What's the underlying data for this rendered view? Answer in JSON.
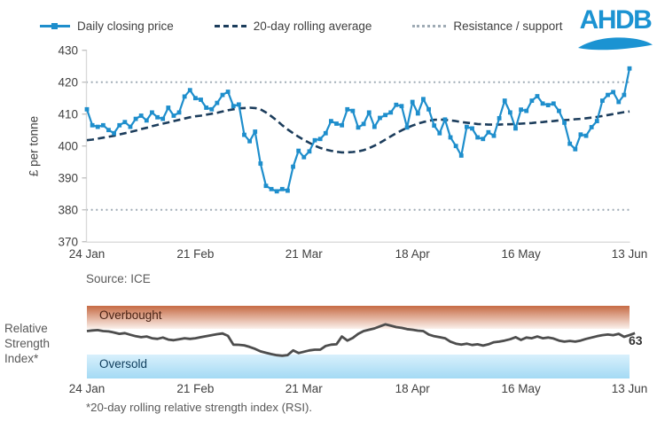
{
  "legend": {
    "items": [
      {
        "label": "Daily closing price",
        "type": "line-marker",
        "color": "#1E8ECC"
      },
      {
        "label": "20-day rolling average",
        "type": "dashed-line",
        "color": "#1C3D5C"
      },
      {
        "label": "Resistance / support",
        "type": "dotted-line",
        "color": "#9EAAB4"
      }
    ]
  },
  "logo": {
    "text": "AHDB",
    "color": "#1B93D2"
  },
  "source": {
    "text": "Source: ICE"
  },
  "colors": {
    "price": "#1E8ECC",
    "average": "#1C3D5C",
    "support": "#9EAAB4",
    "axis_line": "#D9D9D9",
    "axis_text": "#404040",
    "rsi_line": "#4D4D4D"
  },
  "chart_data": [
    {
      "type": "line",
      "ylabel": "£ per tonne",
      "ylim": [
        370,
        430
      ],
      "yticks": [
        370,
        380,
        390,
        400,
        410,
        420,
        430
      ],
      "x_tick_labels": [
        "24 Jan",
        "21 Feb",
        "21 Mar",
        "18 Apr",
        "16 May",
        "13 Jun"
      ],
      "resistance_support": [
        420,
        380
      ],
      "grid": "off",
      "legend_position": "top",
      "series": [
        {
          "name": "Daily closing price",
          "values": [
            411.5,
            406.5,
            406.0,
            406.5,
            405.0,
            404.0,
            406.5,
            407.5,
            406.0,
            408.5,
            409.5,
            408.0,
            410.5,
            409.0,
            408.5,
            412.0,
            409.5,
            410.5,
            415.5,
            417.5,
            415.0,
            414.5,
            412.0,
            411.5,
            413.5,
            416.0,
            417.0,
            412.5,
            413.0,
            403.5,
            401.5,
            404.5,
            394.5,
            387.5,
            386.5,
            385.8,
            386.5,
            386.0,
            393.5,
            398.5,
            396.5,
            398.3,
            401.8,
            402.2,
            404.0,
            407.8,
            407.0,
            406.5,
            411.5,
            411.0,
            405.8,
            406.9,
            410.5,
            406.0,
            408.8,
            409.7,
            410.5,
            412.9,
            412.5,
            405.8,
            413.8,
            410.2,
            414.7,
            411.5,
            406.4,
            404.0,
            408.3,
            402.7,
            400.0,
            397.0,
            406.0,
            405.5,
            402.7,
            402.2,
            404.3,
            403.2,
            408.7,
            414.2,
            410.5,
            405.5,
            411.4,
            411.0,
            414.2,
            415.6,
            413.3,
            412.8,
            413.3,
            411.0,
            407.3,
            400.7,
            399.0,
            403.6,
            403.2,
            405.9,
            407.8,
            414.2,
            416.0,
            416.9,
            413.8,
            416.0,
            424.3
          ]
        },
        {
          "name": "20-day rolling average",
          "values": [
            401.8,
            402.0,
            402.3,
            402.6,
            402.9,
            403.2,
            403.6,
            404.0,
            404.4,
            404.8,
            405.3,
            405.7,
            406.2,
            406.6,
            407.0,
            407.4,
            407.8,
            408.2,
            408.6,
            409.0,
            409.3,
            409.5,
            409.8,
            410.1,
            410.4,
            410.8,
            411.2,
            411.5,
            411.8,
            411.9,
            412.0,
            411.9,
            411.5,
            410.5,
            409.3,
            408.0,
            406.5,
            405.2,
            404.0,
            402.9,
            401.9,
            401.0,
            400.1,
            399.4,
            398.9,
            398.5,
            398.2,
            398.0,
            398.0,
            398.1,
            398.3,
            398.7,
            399.3,
            400.1,
            401.0,
            402.0,
            403.0,
            404.0,
            404.9,
            405.7,
            406.4,
            407.0,
            407.5,
            407.9,
            408.2,
            408.3,
            408.2,
            408.0,
            407.8,
            407.5,
            407.3,
            407.1,
            406.9,
            406.8,
            406.7,
            406.7,
            406.7,
            406.8,
            406.8,
            406.9,
            407.0,
            407.1,
            407.2,
            407.4,
            407.5,
            407.7,
            407.8,
            408.0,
            408.1,
            408.2,
            408.4,
            408.5,
            408.7,
            408.9,
            409.1,
            409.4,
            409.7,
            410.0,
            410.3,
            410.6,
            410.8
          ]
        }
      ]
    },
    {
      "type": "line",
      "ylabel_lines": [
        "Relative",
        "Strength",
        "Index*"
      ],
      "ylim": [
        0,
        100
      ],
      "x_tick_labels": [
        "24 Jan",
        "21 Feb",
        "21 Mar",
        "18 Apr",
        "16 May",
        "13 Jun"
      ],
      "bands": [
        {
          "label": "Overbought",
          "threshold": 70,
          "color_top": "#C66A44",
          "color_bottom": "#FBF1EC"
        },
        {
          "label": "Oversold",
          "threshold": 30,
          "color_top": "#D8F0FC",
          "color_bottom": "#A4DAF4"
        }
      ],
      "end_label": "63",
      "footnote": "*20-day rolling relative strength index (RSI).",
      "series": [
        {
          "name": "20-day rolling RSI",
          "values": [
            66,
            67,
            67.5,
            66,
            65.5,
            64,
            62,
            63,
            60.5,
            58.5,
            57,
            58,
            55.5,
            54.5,
            56.5,
            53.5,
            52.5,
            54,
            55.5,
            54.5,
            55.5,
            57,
            58.5,
            60,
            61.5,
            62.5,
            59,
            46,
            45.8,
            45,
            42.6,
            39.7,
            36,
            34,
            32,
            30.4,
            29.6,
            30.5,
            37.5,
            33.5,
            35.5,
            37.5,
            38.5,
            38.5,
            44,
            46,
            46.5,
            58,
            52,
            56,
            62,
            66,
            68,
            70,
            73,
            76,
            74,
            72,
            70.8,
            69,
            68,
            66.7,
            66,
            61,
            58.5,
            57,
            55.5,
            50.5,
            47.5,
            46,
            47.5,
            45.5,
            46.5,
            44.5,
            46.5,
            49.5,
            50.5,
            52,
            54,
            57,
            53,
            56.5,
            55.5,
            58,
            55.5,
            56.5,
            55,
            52,
            50.5,
            51.5,
            50.5,
            52,
            54.5,
            56.5,
            58.5,
            60,
            61,
            60,
            62,
            57.5,
            60,
            63
          ]
        }
      ]
    }
  ]
}
